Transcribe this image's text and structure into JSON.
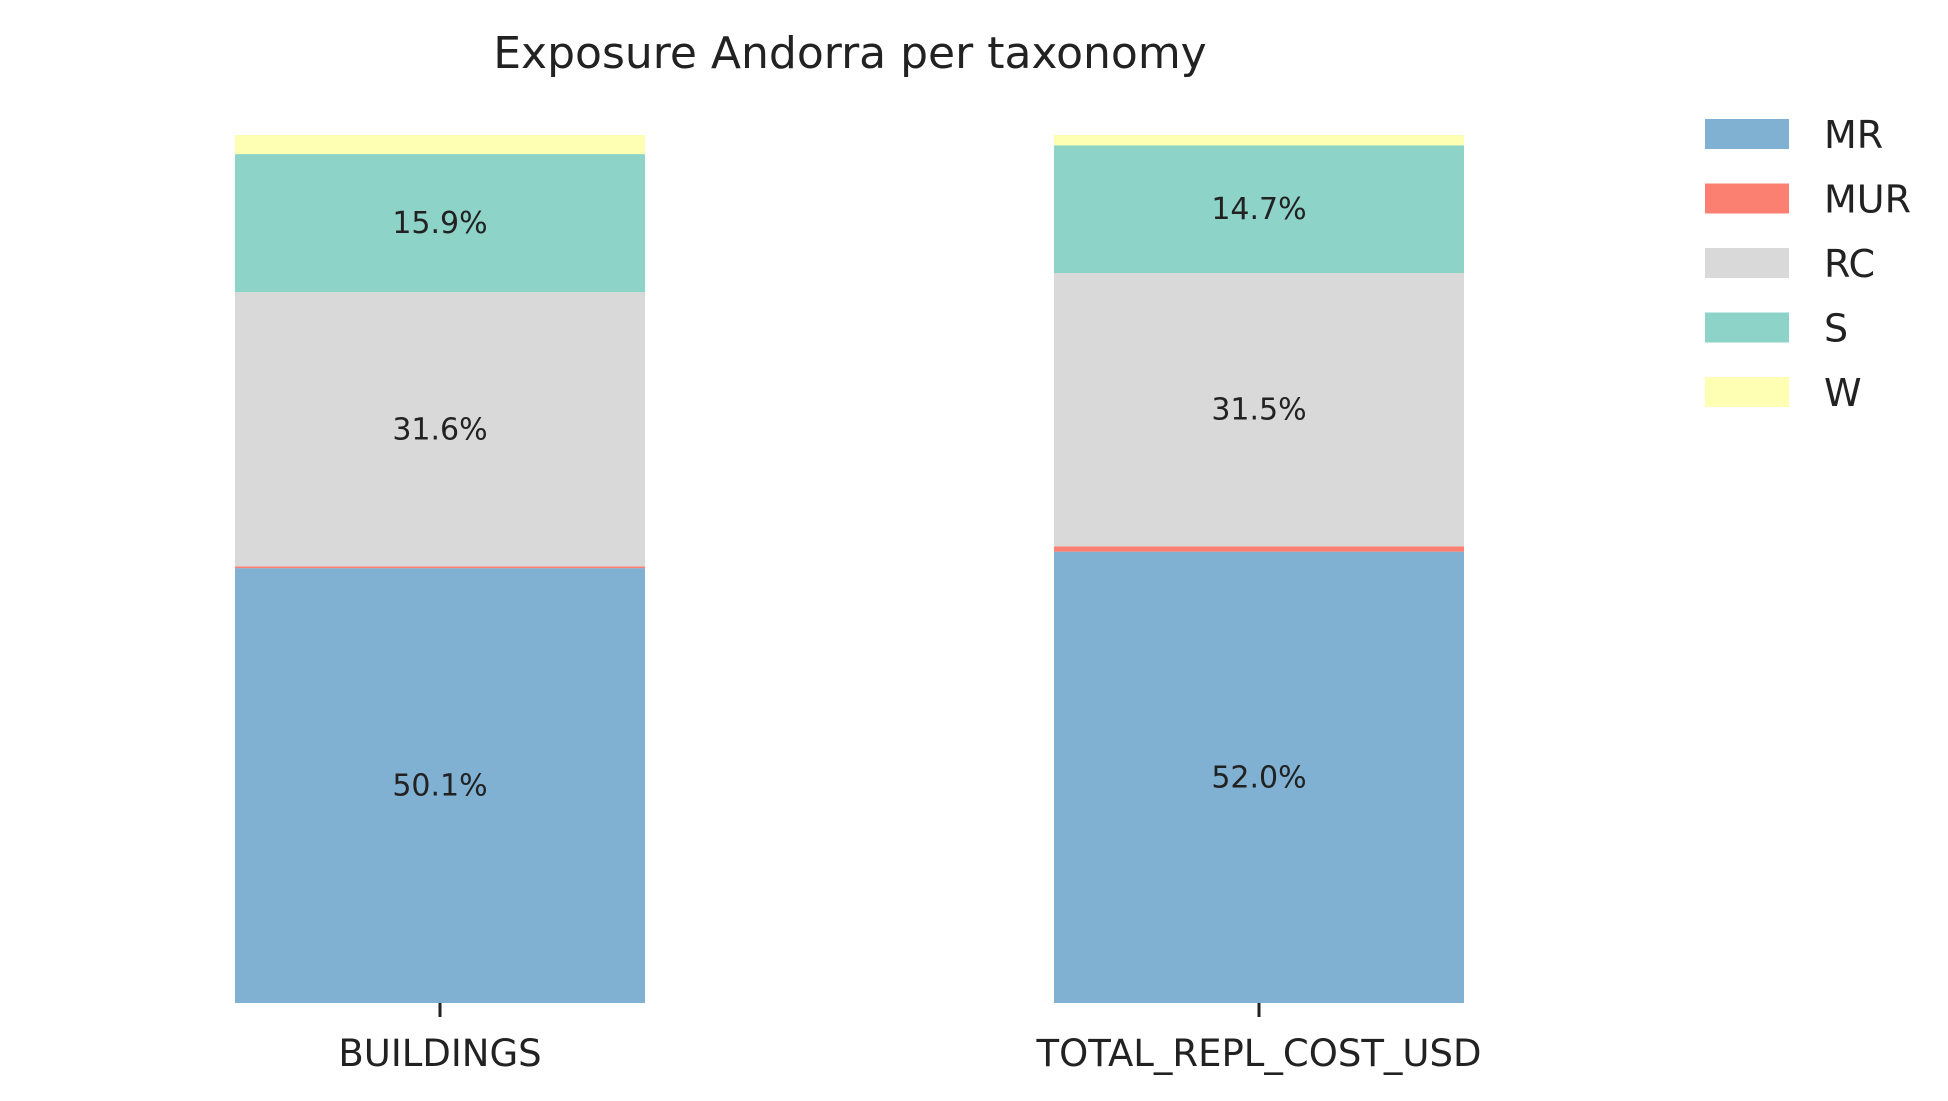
{
  "chart_data": {
    "type": "bar",
    "stacked": true,
    "normalized": true,
    "title": "Exposure Andorra per taxonomy",
    "xlabel": "",
    "ylabel": "",
    "categories": [
      "BUILDINGS",
      "TOTAL_REPL_COST_USD"
    ],
    "ylim": [
      0,
      100
    ],
    "grid": false,
    "legend_position": "top-right",
    "series": [
      {
        "name": "MR",
        "color": "#80b1d3",
        "values": [
          50.1,
          52.0
        ],
        "labels": [
          "50.1%",
          "52.0%"
        ]
      },
      {
        "name": "MUR",
        "color": "#fb8072",
        "values": [
          0.2,
          0.6
        ],
        "labels": [
          "",
          ""
        ]
      },
      {
        "name": "RC",
        "color": "#d9d9d9",
        "values": [
          31.6,
          31.5
        ],
        "labels": [
          "31.6%",
          "31.5%"
        ]
      },
      {
        "name": "S",
        "color": "#8dd3c7",
        "values": [
          15.9,
          14.7
        ],
        "labels": [
          "15.9%",
          "14.7%"
        ]
      },
      {
        "name": "W",
        "color": "#ffffb3",
        "values": [
          2.2,
          1.2
        ],
        "labels": [
          "",
          ""
        ]
      }
    ]
  }
}
